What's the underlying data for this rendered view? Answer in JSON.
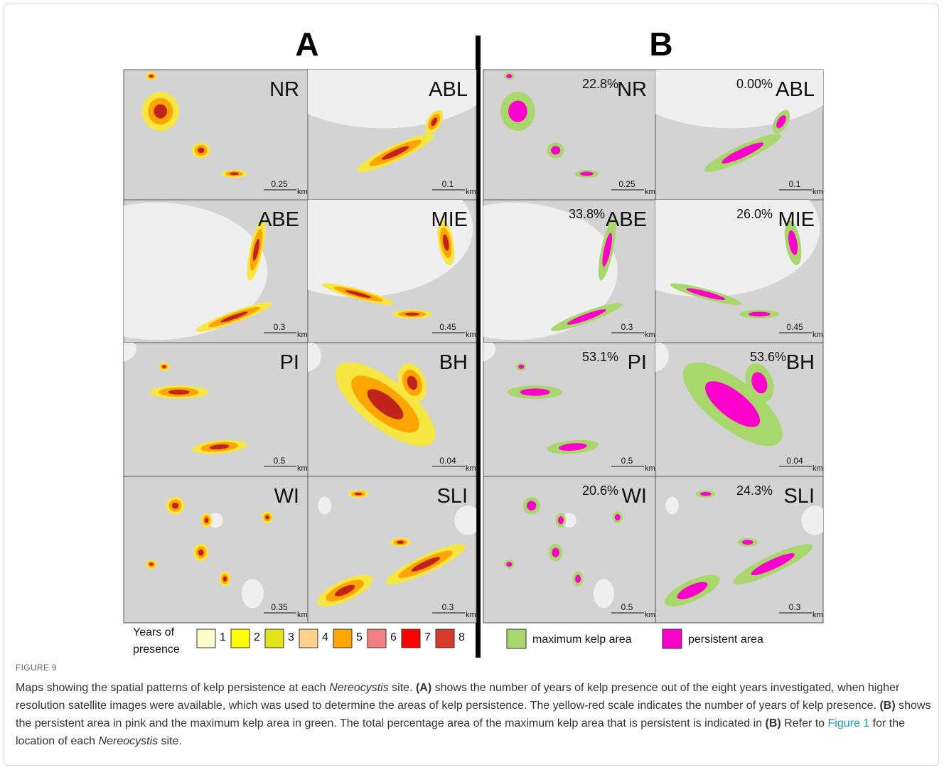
{
  "figure": {
    "panels": [
      "A",
      "B"
    ],
    "maps_a": [
      {
        "site": "NR",
        "scale": "0.25",
        "unit": "km"
      },
      {
        "site": "ABL",
        "scale": "0.1",
        "unit": "km"
      },
      {
        "site": "ABE",
        "scale": "0.3",
        "unit": "km"
      },
      {
        "site": "MIE",
        "scale": "0.45",
        "unit": "km"
      },
      {
        "site": "PI",
        "scale": "0.5",
        "unit": "km"
      },
      {
        "site": "BH",
        "scale": "0.04",
        "unit": "km"
      },
      {
        "site": "WI",
        "scale": "0.35",
        "unit": "km"
      },
      {
        "site": "SLI",
        "scale": "0.3",
        "unit": "km"
      }
    ],
    "maps_b": [
      {
        "site": "NR",
        "percent": "22.8%",
        "scale": "0.25",
        "unit": "km"
      },
      {
        "site": "ABL",
        "percent": "0.00%",
        "scale": "0.1",
        "unit": "km"
      },
      {
        "site": "ABE",
        "percent": "33.8%",
        "scale": "0.3",
        "unit": "km"
      },
      {
        "site": "MIE",
        "percent": "26.0%",
        "scale": "0.45",
        "unit": "km"
      },
      {
        "site": "PI",
        "percent": "53.1%",
        "scale": "0.5",
        "unit": "km"
      },
      {
        "site": "BH",
        "percent": "53.6%",
        "scale": "0.04",
        "unit": "km"
      },
      {
        "site": "WI",
        "percent": "20.6%",
        "scale": "0.5",
        "unit": "km"
      },
      {
        "site": "SLI",
        "percent": "24.3%",
        "scale": "0.3",
        "unit": "km"
      }
    ],
    "legend_a": {
      "title": [
        "Years of",
        "presence"
      ],
      "items": [
        {
          "label": "1",
          "color": "#fffccc"
        },
        {
          "label": "2",
          "color": "#ffff00"
        },
        {
          "label": "3",
          "color": "#e3e31a"
        },
        {
          "label": "4",
          "color": "#ffd28c"
        },
        {
          "label": "5",
          "color": "#ffa500"
        },
        {
          "label": "6",
          "color": "#f28080"
        },
        {
          "label": "7",
          "color": "#ff0000"
        },
        {
          "label": "8",
          "color": "#d63a2a"
        }
      ]
    },
    "legend_b": {
      "items": [
        {
          "label": "maximum kelp area",
          "color": "#a8d86b"
        },
        {
          "label": "persistent area",
          "color": "#ff00cc"
        }
      ]
    },
    "caption": {
      "label": "FIGURE 9",
      "runs": [
        {
          "text": "Maps showing the spatial patterns of kelp persistence at each "
        },
        {
          "text": "Nereocystis",
          "style": "italic"
        },
        {
          "text": " site. "
        },
        {
          "text": "(A)",
          "style": "bold"
        },
        {
          "text": " shows the number of years of kelp presence out of the eight years investigated, when higher resolution satellite images were available, which was used to determine the areas of kelp persistence. The yellow-red scale indicates the number of years of kelp presence. "
        },
        {
          "text": "(B)",
          "style": "bold"
        },
        {
          "text": " shows the persistent area in pink and the maximum kelp area in green. The total percentage area of the maximum kelp area that is persistent is indicated in "
        },
        {
          "text": "(B)",
          "style": "bold"
        },
        {
          "text": " Refer to "
        },
        {
          "text": "Figure 1",
          "style": "link"
        },
        {
          "text": " for the location of each "
        },
        {
          "text": "Nereocystis",
          "style": "italic"
        },
        {
          "text": " site."
        }
      ]
    }
  }
}
